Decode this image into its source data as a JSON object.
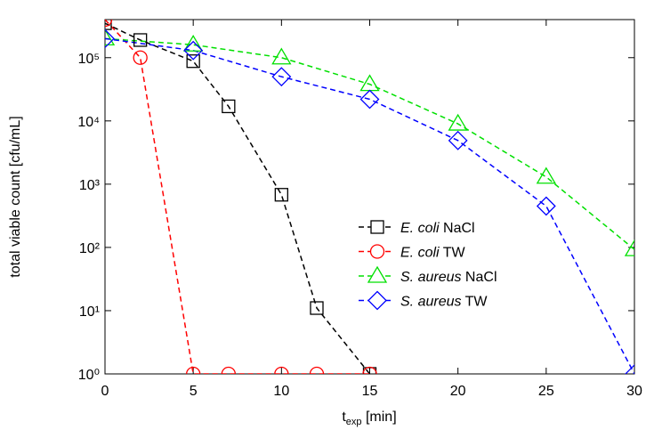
{
  "chart_data": {
    "type": "line",
    "xlabel": [
      "t",
      "exp",
      " [min]"
    ],
    "ylabel": "total viable count [cfu/mL]",
    "xlim": [
      0,
      30
    ],
    "xticks": [
      0,
      5,
      10,
      15,
      20,
      25,
      30
    ],
    "ylim": [
      1,
      400000
    ],
    "log_y": true,
    "yticks": [
      {
        "value": 1,
        "label": "10⁰"
      },
      {
        "value": 10,
        "label": "10¹"
      },
      {
        "value": 100,
        "label": "10²"
      },
      {
        "value": 1000,
        "label": "10³"
      },
      {
        "value": 10000,
        "label": "10⁴"
      },
      {
        "value": 100000,
        "label": "10⁵"
      }
    ],
    "legend": "center-right",
    "series": [
      {
        "name": "E. coli NaCl",
        "color": "#000000",
        "marker": "square",
        "x": [
          0,
          2,
          5,
          7,
          10,
          12,
          15
        ],
        "values": [
          350000,
          190000,
          88000,
          17000,
          680,
          11,
          1
        ]
      },
      {
        "name": "E. coli TW",
        "color": "#ff0000",
        "marker": "circle",
        "x": [
          0,
          2,
          5,
          7,
          10,
          12,
          15
        ],
        "values": [
          400000,
          100000,
          1,
          1,
          1,
          1,
          1
        ]
      },
      {
        "name": "S. aureus NaCl",
        "color": "#00e000",
        "marker": "triangle",
        "x": [
          0,
          5,
          10,
          15,
          20,
          25,
          30
        ],
        "values": [
          200000,
          160000,
          100000,
          38000,
          9000,
          1300,
          93
        ]
      },
      {
        "name": "S. aureus TW",
        "color": "#0000ff",
        "marker": "diamond",
        "x": [
          0,
          5,
          10,
          15,
          20,
          25,
          30
        ],
        "values": [
          200000,
          130000,
          50000,
          22000,
          4900,
          450,
          1
        ]
      }
    ]
  }
}
